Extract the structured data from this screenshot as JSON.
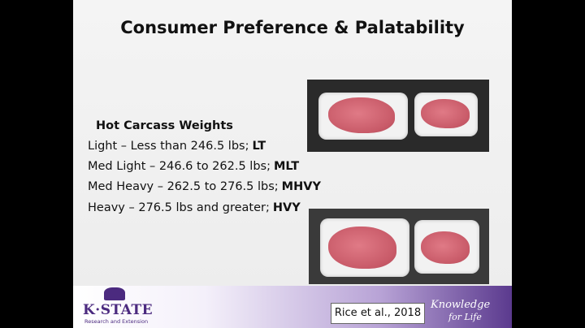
{
  "slide": {
    "title": "Consumer Preference & Palatability",
    "heading": "Hot Carcass Weights",
    "items": [
      {
        "text": "Light – Less than 246.5 lbs;",
        "abbr": "LT"
      },
      {
        "text": "Med Light – 246.6 to 262.5 lbs;",
        "abbr": "MLT"
      },
      {
        "text": "Med Heavy – 262.5 to 276.5 lbs;",
        "abbr": "MHVY"
      },
      {
        "text": "Heavy – 276.5 lbs and greater;",
        "abbr": "HVY"
      }
    ],
    "citation": "Rice et al., 2018",
    "logo": {
      "name": "K·STATE",
      "subtitle": "Research and Extension"
    },
    "tagline": {
      "line1": "Knowledge",
      "line2": "for Life"
    }
  }
}
